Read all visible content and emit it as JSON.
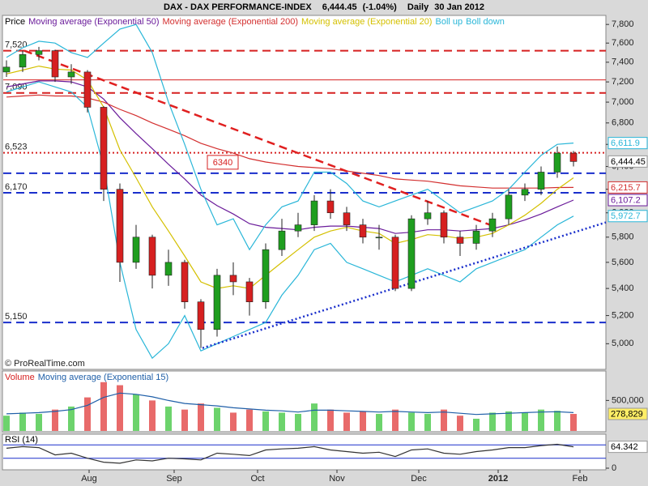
{
  "header": {
    "title": "DAX - DAX PERFORMANCE-INDEX",
    "price": "6,444.45",
    "change": "(-1.04%)",
    "period": "Daily",
    "date": "30 Jan 2012"
  },
  "chart_data": [
    {
      "type": "candlestick",
      "title": "Price",
      "copyright": "© ProRealTime.com",
      "x": [
        0,
        1,
        2,
        3,
        4,
        5,
        6,
        7,
        8,
        9,
        10,
        11,
        12,
        13,
        14,
        15,
        16,
        17,
        18,
        19,
        20,
        21,
        22,
        23,
        24,
        25,
        26,
        27,
        28,
        29,
        30,
        31,
        32,
        33,
        34,
        35
      ],
      "xlim": [
        -0.2,
        37
      ],
      "xticks": [
        {
          "value": 5.1,
          "label": "Aug"
        },
        {
          "value": 10.35,
          "label": "Sep"
        },
        {
          "value": 15.5,
          "label": "Oct"
        },
        {
          "value": 20.4,
          "label": "Nov"
        },
        {
          "value": 25.45,
          "label": "Dec"
        },
        {
          "value": 30.35,
          "label": "2012"
        },
        {
          "value": 35.4,
          "label": "Feb"
        }
      ],
      "ylim": [
        4830,
        7890
      ],
      "log_scale": true,
      "yticks": [
        {
          "value": 5000,
          "label": "5,000"
        },
        {
          "value": 5200,
          "label": "5,200"
        },
        {
          "value": 5400,
          "label": "5,400"
        },
        {
          "value": 5600,
          "label": "5,600"
        },
        {
          "value": 5800,
          "label": "5,800"
        },
        {
          "value": 6000,
          "label": "6,000"
        },
        {
          "value": 6200,
          "label": "6,200"
        },
        {
          "value": 6400,
          "label": "6,400"
        },
        {
          "value": 6600,
          "label": "6,600"
        },
        {
          "value": 6800,
          "label": "6,800"
        },
        {
          "value": 7000,
          "label": "7,000"
        },
        {
          "value": 7200,
          "label": "7,200"
        },
        {
          "value": 7400,
          "label": "7,400"
        },
        {
          "value": 7600,
          "label": "7,600"
        },
        {
          "value": 7800,
          "label": "7,800"
        }
      ],
      "open": [
        7300,
        7350,
        7480,
        7520,
        7250,
        7300,
        6950,
        6200,
        5600,
        5800,
        5500,
        5600,
        5300,
        5100,
        5500,
        5450,
        5300,
        5700,
        5850,
        5900,
        6100,
        6000,
        5900,
        5800,
        5800,
        5400,
        5950,
        6000,
        5800,
        5750,
        5850,
        5950,
        6150,
        6200,
        6350,
        6520
      ],
      "high": [
        7420,
        7520,
        7560,
        7530,
        7380,
        7320,
        6960,
        6250,
        5900,
        5820,
        5700,
        5620,
        5320,
        5550,
        5600,
        5480,
        5750,
        5950,
        6000,
        6150,
        6200,
        6050,
        5950,
        5900,
        5820,
        5980,
        6100,
        6020,
        5850,
        5900,
        6000,
        6200,
        6250,
        6400,
        6580,
        6540
      ],
      "low": [
        7250,
        7300,
        7420,
        7200,
        7180,
        6900,
        6100,
        5450,
        5550,
        5400,
        5420,
        5250,
        4970,
        5050,
        5350,
        5200,
        5250,
        5650,
        5800,
        5850,
        5950,
        5850,
        5750,
        5700,
        5380,
        5380,
        5900,
        5750,
        5650,
        5700,
        5800,
        5900,
        6100,
        6150,
        6300,
        6400
      ],
      "close": [
        7350,
        7480,
        7520,
        7250,
        7300,
        6950,
        6200,
        5600,
        5800,
        5500,
        5600,
        5300,
        5100,
        5500,
        5450,
        5300,
        5700,
        5850,
        5900,
        6100,
        6000,
        5900,
        5800,
        5800,
        5400,
        5950,
        6000,
        5800,
        5750,
        5850,
        5950,
        6150,
        6200,
        6350,
        6520,
        6444.45
      ],
      "last_label": "6,444.45",
      "up_color": "#1f9e1f",
      "down_color": "#d62020",
      "series": [
        {
          "name": "Moving average (Exponential 50)",
          "color": "#6a1b9a",
          "last_label": "6,107.2",
          "values": [
            7150,
            7180,
            7210,
            7210,
            7200,
            7150,
            7030,
            6850,
            6700,
            6560,
            6420,
            6290,
            6150,
            6060,
            5990,
            5910,
            5880,
            5870,
            5860,
            5880,
            5890,
            5890,
            5880,
            5870,
            5830,
            5840,
            5860,
            5860,
            5850,
            5860,
            5870,
            5900,
            5940,
            5990,
            6050,
            6107.2
          ]
        },
        {
          "name": "Moving average (Exponential 200)",
          "color": "#d32f2f",
          "last_label": "6,215.7",
          "values": [
            7050,
            7060,
            7070,
            7060,
            7060,
            7040,
            7000,
            6930,
            6870,
            6800,
            6740,
            6680,
            6610,
            6560,
            6520,
            6470,
            6440,
            6420,
            6400,
            6390,
            6380,
            6360,
            6340,
            6320,
            6290,
            6280,
            6270,
            6250,
            6230,
            6220,
            6210,
            6210,
            6210,
            6210,
            6215,
            6215.7
          ]
        },
        {
          "name": "Moving average (Exponential 20)",
          "color": "#d4c000",
          "values": [
            7280,
            7320,
            7360,
            7330,
            7320,
            7220,
            6950,
            6550,
            6300,
            6050,
            5850,
            5650,
            5450,
            5400,
            5420,
            5400,
            5500,
            5600,
            5700,
            5800,
            5850,
            5880,
            5850,
            5830,
            5750,
            5780,
            5820,
            5810,
            5790,
            5800,
            5830,
            5900,
            5980,
            6080,
            6200,
            6300
          ]
        },
        {
          "name": "Boll up",
          "color": "#29b6d8",
          "last_label": "6,611.9",
          "values": [
            7450,
            7550,
            7620,
            7600,
            7500,
            7450,
            7600,
            7750,
            7800,
            7500,
            7000,
            6600,
            6200,
            5900,
            5950,
            5700,
            5900,
            6050,
            6100,
            6350,
            6350,
            6250,
            6100,
            6050,
            6100,
            6150,
            6200,
            6100,
            6000,
            6050,
            6100,
            6200,
            6350,
            6500,
            6600,
            6611.9
          ]
        },
        {
          "name": "Boll down",
          "color": "#29b6d8",
          "last_label": "5,972.7",
          "values": [
            7100,
            7150,
            7200,
            7150,
            7100,
            6950,
            6400,
            5600,
            5100,
            4900,
            5000,
            5200,
            4950,
            5000,
            5050,
            5100,
            5150,
            5350,
            5500,
            5700,
            5750,
            5600,
            5550,
            5500,
            5450,
            5500,
            5550,
            5500,
            5450,
            5550,
            5600,
            5650,
            5700,
            5800,
            5900,
            5972.7
          ]
        }
      ],
      "levels": [
        {
          "value": 7520,
          "label": "7,520",
          "color": "#d62020",
          "style": "dashed"
        },
        {
          "value": 7220,
          "color": "#d62020",
          "style": "thin"
        },
        {
          "value": 7090,
          "label": "7,090",
          "color": "#d62020",
          "style": "dashed"
        },
        {
          "value": 6523,
          "label": "6,523",
          "color": "#d62020",
          "style": "dotted"
        },
        {
          "value": 6340,
          "label": "6340",
          "color": "#1a2fcc",
          "style": "dashed",
          "boxed": true
        },
        {
          "value": 6170,
          "label": "6,170",
          "color": "#1a2fcc",
          "style": "dashed"
        },
        {
          "value": 5150,
          "label": "5,150",
          "color": "#1a2fcc",
          "style": "dashed"
        }
      ],
      "trendlines": [
        {
          "x": [
            1.1,
            29.85
          ],
          "values": [
            7520,
            5900
          ],
          "color": "#e02020",
          "style": "dashed"
        },
        {
          "x": [
            12.1,
            37
          ],
          "values": [
            4970,
            5920
          ],
          "color": "#1a2fcc",
          "style": "dotted"
        }
      ]
    },
    {
      "type": "volume",
      "title": "Volume",
      "values": [
        250000,
        300000,
        280000,
        350000,
        400000,
        550000,
        800000,
        750000,
        600000,
        500000,
        400000,
        350000,
        450000,
        380000,
        300000,
        350000,
        320000,
        300000,
        280000,
        450000,
        350000,
        300000,
        320000,
        280000,
        350000,
        300000,
        280000,
        350000,
        250000,
        200000,
        300000,
        320000,
        300000,
        350000,
        330000,
        278829
      ],
      "last_label": "278,829",
      "ylim": [
        0,
        970000
      ],
      "yticks": [
        {
          "value": 500000,
          "label": "500,000"
        }
      ],
      "series": [
        {
          "name": "Moving average (Exponential 15)",
          "color": "#1f5fa8",
          "values": [
            280000,
            290000,
            300000,
            320000,
            350000,
            420000,
            550000,
            620000,
            600000,
            560000,
            500000,
            450000,
            430000,
            410000,
            380000,
            360000,
            340000,
            330000,
            310000,
            340000,
            340000,
            330000,
            320000,
            310000,
            320000,
            310000,
            300000,
            310000,
            290000,
            270000,
            280000,
            290000,
            300000,
            310000,
            315000,
            300000
          ]
        }
      ]
    },
    {
      "type": "line",
      "title": "RSI (14)",
      "color": "#333333",
      "values": [
        60,
        65,
        62,
        40,
        45,
        30,
        18,
        15,
        25,
        22,
        30,
        28,
        25,
        45,
        42,
        38,
        55,
        58,
        60,
        65,
        55,
        50,
        45,
        48,
        35,
        55,
        58,
        45,
        42,
        50,
        55,
        62,
        62,
        68,
        72,
        64.342
      ],
      "last_label": "64.342",
      "ylim": [
        0,
        100
      ],
      "yticks": [
        0
      ],
      "levels": [
        30,
        70
      ]
    }
  ]
}
